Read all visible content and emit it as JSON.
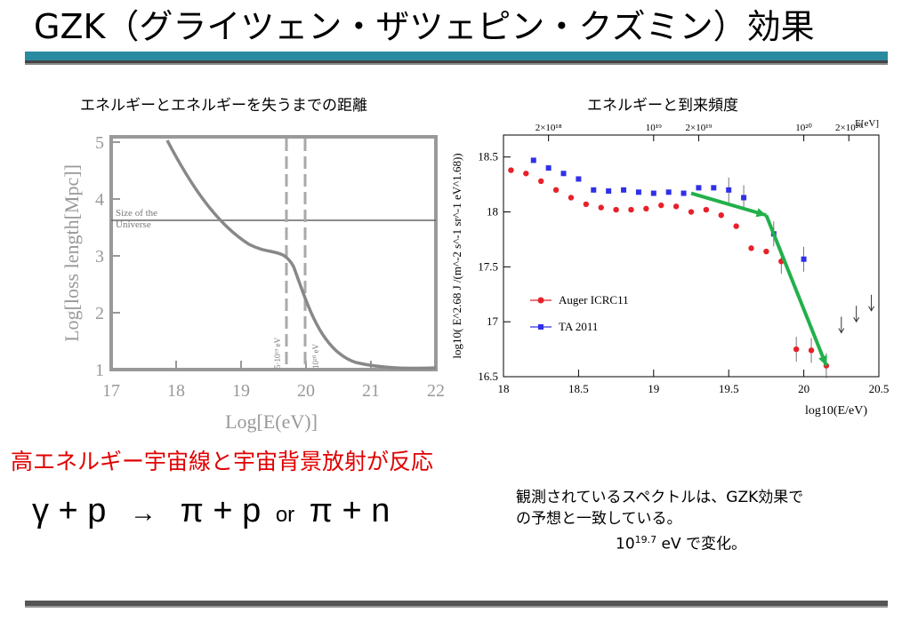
{
  "title": "GZK（グライツェン・ザツェピン・クズミン）効果",
  "left_caption": "エネルギーとエネルギーを失うまでの距離",
  "right_caption": "エネルギーと到来頻度",
  "left_plot": {
    "xlabel": "Log[E(eV)]",
    "ylabel": "Log[loss length[Mpc]]",
    "xticks": [
      "17",
      "18",
      "19",
      "20",
      "21",
      "22"
    ],
    "yticks": [
      "1",
      "2",
      "3",
      "4",
      "5"
    ],
    "universe_label_1": "Size of the",
    "universe_label_2": "Universe",
    "vline1_label": "5·10¹⁹ eV",
    "vline2_label": "10²⁰ eV"
  },
  "chart_data": {
    "type": "scatter",
    "xlabel": "log10(E/eV)",
    "ylabel": "log10( E^2.68 J /(m^-2 s^-1 sr^-1 eV^1.68))",
    "xlim": [
      18,
      20.5
    ],
    "ylim": [
      16.5,
      18.7
    ],
    "xticks": [
      "18",
      "18.5",
      "19",
      "19.5",
      "20",
      "20.5"
    ],
    "yticks": [
      "16.5",
      "17",
      "17.5",
      "18",
      "18.5"
    ],
    "top_axis_label": "E[eV]",
    "top_ticks": [
      "2×10¹⁸",
      "10¹⁹",
      "2×10¹⁹",
      "10²⁰",
      "2×10²⁰"
    ],
    "series": [
      {
        "name": "Auger ICRC11",
        "color": "#e8202a",
        "x": [
          18.05,
          18.15,
          18.25,
          18.35,
          18.45,
          18.55,
          18.65,
          18.75,
          18.85,
          18.95,
          19.05,
          19.15,
          19.25,
          19.35,
          19.45,
          19.55,
          19.65,
          19.75,
          19.85,
          19.95,
          20.05,
          20.15
        ],
        "y": [
          18.38,
          18.35,
          18.28,
          18.2,
          18.13,
          18.07,
          18.04,
          18.02,
          18.02,
          18.03,
          18.06,
          18.05,
          18.0,
          18.02,
          17.97,
          17.87,
          17.67,
          17.64,
          17.55,
          16.75,
          16.74,
          16.6
        ]
      },
      {
        "name": "TA 2011",
        "color": "#3030e8",
        "x": [
          18.2,
          18.3,
          18.4,
          18.5,
          18.6,
          18.7,
          18.8,
          18.9,
          19.0,
          19.1,
          19.2,
          19.3,
          19.4,
          19.5,
          19.6,
          19.8,
          20.0
        ],
        "y": [
          18.47,
          18.4,
          18.35,
          18.3,
          18.2,
          18.19,
          18.2,
          18.18,
          18.17,
          18.18,
          18.17,
          18.22,
          18.22,
          18.2,
          18.13,
          17.8,
          17.57
        ]
      }
    ],
    "upper_limits_x": [
      20.25,
      20.35,
      20.45
    ],
    "arrows": [
      [
        19.25,
        18.17,
        19.75,
        17.97
      ],
      [
        19.75,
        17.97,
        20.15,
        16.6
      ]
    ]
  },
  "red_text": "高エネルギー宇宙線と宇宙背景放射が反応",
  "equation": {
    "lhs": "γ + p",
    "arrow": "→",
    "r1": "π + p",
    "or": "or",
    "r2": "π + n"
  },
  "note": {
    "line1": "観測されているスペクトルは、GZK効果で",
    "line2": "の予想と一致している。",
    "base": "10",
    "exp": "19.7",
    "rest": " eV で変化。"
  }
}
